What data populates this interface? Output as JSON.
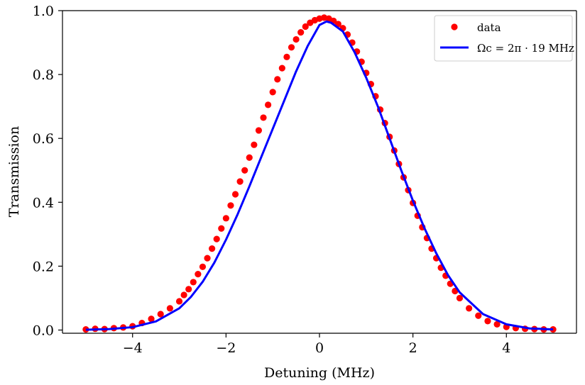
{
  "chart_data": {
    "type": "scatter",
    "xlabel": "Detuning (MHz)",
    "ylabel": "Transmission",
    "xlim": [
      -5.5,
      5.5
    ],
    "ylim": [
      -0.01,
      1.0
    ],
    "xticks": [
      -4,
      -2,
      0,
      2,
      4
    ],
    "xtick_labels": [
      "−4",
      "−2",
      "0",
      "2",
      "4"
    ],
    "yticks": [
      0.0,
      0.2,
      0.4,
      0.6,
      0.8,
      1.0
    ],
    "ytick_labels": [
      "0.0",
      "0.2",
      "0.4",
      "0.6",
      "0.8",
      "1.0"
    ],
    "grid": false,
    "legend_position": "top-right",
    "series": [
      {
        "name": "data",
        "kind": "scatter",
        "color": "#ff0000",
        "x": [
          -5.0,
          -4.8,
          -4.6,
          -4.4,
          -4.2,
          -4.0,
          -3.8,
          -3.6,
          -3.4,
          -3.2,
          -3.0,
          -2.9,
          -2.8,
          -2.7,
          -2.6,
          -2.5,
          -2.4,
          -2.3,
          -2.2,
          -2.1,
          -2.0,
          -1.9,
          -1.8,
          -1.7,
          -1.6,
          -1.5,
          -1.4,
          -1.3,
          -1.2,
          -1.1,
          -1.0,
          -0.9,
          -0.8,
          -0.7,
          -0.6,
          -0.5,
          -0.4,
          -0.3,
          -0.2,
          -0.1,
          0.0,
          0.1,
          0.2,
          0.3,
          0.4,
          0.5,
          0.6,
          0.7,
          0.8,
          0.9,
          1.0,
          1.1,
          1.2,
          1.3,
          1.4,
          1.5,
          1.6,
          1.7,
          1.8,
          1.9,
          2.0,
          2.1,
          2.2,
          2.3,
          2.4,
          2.5,
          2.6,
          2.7,
          2.8,
          2.9,
          3.0,
          3.2,
          3.4,
          3.6,
          3.8,
          4.0,
          4.2,
          4.4,
          4.6,
          4.8,
          5.0
        ],
        "y": [
          0.002,
          0.004,
          0.003,
          0.006,
          0.008,
          0.012,
          0.022,
          0.035,
          0.05,
          0.068,
          0.09,
          0.11,
          0.128,
          0.15,
          0.175,
          0.198,
          0.225,
          0.255,
          0.285,
          0.318,
          0.35,
          0.39,
          0.425,
          0.465,
          0.5,
          0.54,
          0.58,
          0.625,
          0.665,
          0.705,
          0.745,
          0.785,
          0.82,
          0.855,
          0.885,
          0.91,
          0.932,
          0.95,
          0.962,
          0.97,
          0.975,
          0.978,
          0.975,
          0.968,
          0.958,
          0.945,
          0.925,
          0.9,
          0.872,
          0.84,
          0.805,
          0.77,
          0.732,
          0.69,
          0.648,
          0.605,
          0.562,
          0.52,
          0.478,
          0.438,
          0.398,
          0.358,
          0.322,
          0.288,
          0.255,
          0.225,
          0.195,
          0.17,
          0.145,
          0.122,
          0.1,
          0.068,
          0.045,
          0.028,
          0.018,
          0.01,
          0.006,
          0.004,
          0.003,
          0.002,
          0.002
        ]
      },
      {
        "name": "Ωc = 2π · 19 MHz",
        "kind": "line",
        "color": "#0000ff",
        "x": [
          -5.0,
          -4.5,
          -4.0,
          -3.5,
          -3.0,
          -2.75,
          -2.5,
          -2.25,
          -2.0,
          -1.75,
          -1.5,
          -1.25,
          -1.0,
          -0.75,
          -0.5,
          -0.25,
          0.0,
          0.15,
          0.25,
          0.5,
          0.75,
          1.0,
          1.25,
          1.5,
          1.75,
          2.0,
          2.25,
          2.5,
          2.75,
          3.0,
          3.5,
          4.0,
          4.5,
          5.0
        ],
        "y": [
          0.001,
          0.003,
          0.009,
          0.027,
          0.068,
          0.104,
          0.151,
          0.211,
          0.283,
          0.363,
          0.45,
          0.54,
          0.63,
          0.72,
          0.81,
          0.89,
          0.955,
          0.966,
          0.962,
          0.935,
          0.87,
          0.79,
          0.7,
          0.6,
          0.5,
          0.405,
          0.318,
          0.24,
          0.172,
          0.118,
          0.05,
          0.018,
          0.005,
          0.002
        ]
      }
    ]
  }
}
